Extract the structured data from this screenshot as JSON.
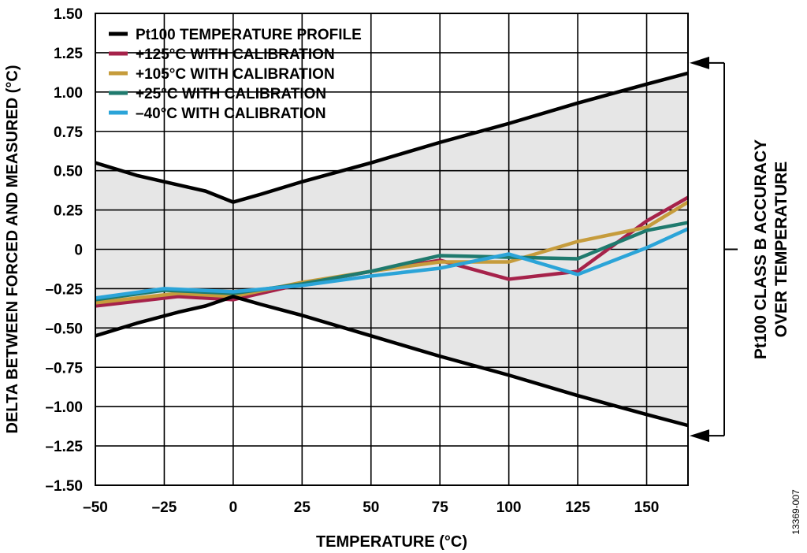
{
  "chart_data": {
    "type": "line",
    "title": "",
    "xlabel": "TEMPERATURE (°C)",
    "ylabel": "DELTA BETWEEN FORCED AND MEASURED (°C)",
    "xlim": [
      -50,
      165
    ],
    "ylim": [
      -1.5,
      1.5
    ],
    "x_ticks": [
      -50,
      -25,
      0,
      25,
      50,
      75,
      100,
      125,
      150
    ],
    "x_tick_labels": [
      "–50",
      "–25",
      "0",
      "25",
      "50",
      "75",
      "100",
      "125",
      "150"
    ],
    "y_ticks": [
      1.5,
      1.25,
      1.0,
      0.75,
      0.5,
      0.25,
      0,
      -0.25,
      -0.5,
      -0.75,
      -1.0,
      -1.25,
      -1.5
    ],
    "y_tick_labels": [
      "1.50",
      "1.25",
      "1.00",
      "0.75",
      "0.50",
      "0.25",
      "0",
      "–0.25",
      "–0.50",
      "–0.75",
      "–1.00",
      "–1.25",
      "–1.50"
    ],
    "grid": true,
    "legend_position": "top-left",
    "shaded_band": {
      "color": "#e6e6e6",
      "between": [
        "Pt100 upper limit",
        "Pt100 lower limit"
      ]
    },
    "profile": {
      "name": "Pt100 TEMPERATURE PROFILE",
      "color": "#000000",
      "x": [
        -50,
        -35,
        -20,
        -10,
        0,
        10,
        25,
        50,
        75,
        100,
        125,
        150,
        165
      ],
      "upper": [
        0.55,
        0.47,
        0.41,
        0.37,
        0.3,
        0.35,
        0.43,
        0.55,
        0.68,
        0.8,
        0.93,
        1.05,
        1.12
      ],
      "lower": [
        -0.55,
        -0.47,
        -0.4,
        -0.36,
        -0.3,
        -0.35,
        -0.42,
        -0.55,
        -0.68,
        -0.8,
        -0.93,
        -1.05,
        -1.12
      ]
    },
    "series": [
      {
        "name": "+125°C WITH CALIBRATION",
        "color": "#a6224a",
        "x": [
          -50,
          -20,
          0,
          25,
          50,
          75,
          100,
          125,
          150,
          165
        ],
        "y": [
          -0.36,
          -0.3,
          -0.32,
          -0.22,
          -0.14,
          -0.07,
          -0.19,
          -0.14,
          0.18,
          0.33
        ]
      },
      {
        "name": "+105°C WITH CALIBRATION",
        "color": "#c69c3c",
        "x": [
          -50,
          -20,
          0,
          25,
          50,
          75,
          100,
          125,
          150,
          165
        ],
        "y": [
          -0.34,
          -0.28,
          -0.3,
          -0.21,
          -0.14,
          -0.08,
          -0.08,
          0.05,
          0.14,
          0.3
        ]
      },
      {
        "name": "+25°C WITH CALIBRATION",
        "color": "#1f7a6e",
        "x": [
          -50,
          -25,
          0,
          25,
          50,
          75,
          100,
          125,
          150,
          165
        ],
        "y": [
          -0.32,
          -0.26,
          -0.28,
          -0.22,
          -0.14,
          -0.04,
          -0.05,
          -0.06,
          0.12,
          0.17
        ]
      },
      {
        "name": "–40°C WITH CALIBRATION",
        "color": "#2ba4d8",
        "x": [
          -50,
          -25,
          0,
          25,
          50,
          75,
          100,
          125,
          150,
          165
        ],
        "y": [
          -0.31,
          -0.25,
          -0.27,
          -0.23,
          -0.17,
          -0.12,
          -0.03,
          -0.16,
          0.01,
          0.13
        ]
      }
    ],
    "annotation": [
      "Pt100 CLASS B ACCURACY",
      "OVER TEMPERATURE"
    ],
    "figure_id": "13369-007"
  }
}
